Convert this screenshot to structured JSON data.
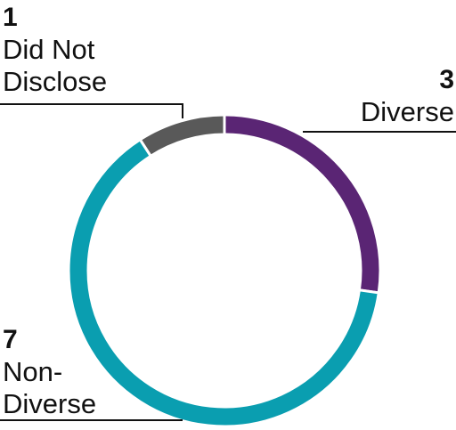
{
  "chart_data": {
    "type": "donut",
    "categories": [
      "Diverse",
      "Non-Diverse",
      "Did Not Disclose"
    ],
    "values": [
      3,
      7,
      1
    ],
    "colors": [
      "#5a2574",
      "#0a9eb0",
      "#595959"
    ]
  }
}
